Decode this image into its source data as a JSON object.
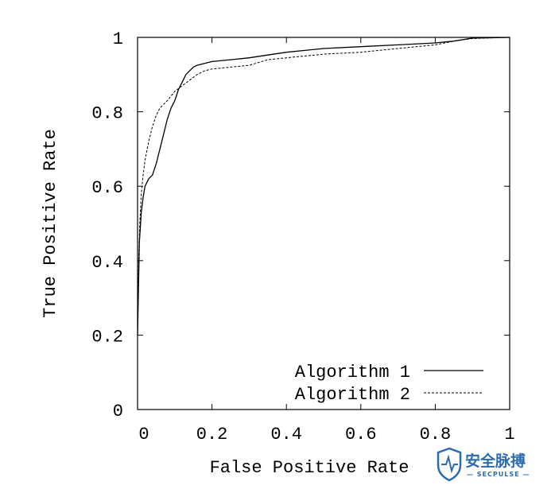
{
  "chart_data": {
    "type": "line",
    "title": "",
    "xlabel": "False Positive Rate",
    "ylabel": "True Positive Rate",
    "xlim": [
      0,
      1
    ],
    "ylim": [
      0,
      1
    ],
    "x_ticks": [
      {
        "value": 0,
        "label": "0"
      },
      {
        "value": 0.2,
        "label": "0.2"
      },
      {
        "value": 0.4,
        "label": "0.4"
      },
      {
        "value": 0.6,
        "label": "0.6"
      },
      {
        "value": 0.8,
        "label": "0.8"
      },
      {
        "value": 1,
        "label": "1"
      }
    ],
    "y_ticks": [
      {
        "value": 0,
        "label": "0"
      },
      {
        "value": 0.2,
        "label": "0.2"
      },
      {
        "value": 0.4,
        "label": "0.4"
      },
      {
        "value": 0.6,
        "label": "0.6"
      },
      {
        "value": 0.8,
        "label": "0.8"
      },
      {
        "value": 1,
        "label": "1"
      }
    ],
    "grid": false,
    "legend_position": "bottom-right",
    "series": [
      {
        "name": "Algorithm 1",
        "style": "solid",
        "color": "#000000",
        "x": [
          0,
          0.005,
          0.01,
          0.015,
          0.02,
          0.03,
          0.04,
          0.05,
          0.06,
          0.07,
          0.08,
          0.09,
          0.1,
          0.11,
          0.12,
          0.13,
          0.14,
          0.15,
          0.16,
          0.18,
          0.2,
          0.25,
          0.3,
          0.4,
          0.5,
          0.6,
          0.7,
          0.8,
          0.85,
          0.9,
          1.0
        ],
        "y": [
          0.2,
          0.45,
          0.53,
          0.57,
          0.6,
          0.62,
          0.63,
          0.66,
          0.7,
          0.74,
          0.78,
          0.81,
          0.83,
          0.86,
          0.88,
          0.9,
          0.91,
          0.92,
          0.925,
          0.93,
          0.935,
          0.94,
          0.945,
          0.96,
          0.97,
          0.975,
          0.98,
          0.985,
          0.99,
          0.998,
          1.0
        ]
      },
      {
        "name": "Algorithm 2",
        "style": "dashed",
        "color": "#000000",
        "x": [
          0,
          0.003,
          0.006,
          0.01,
          0.015,
          0.02,
          0.03,
          0.04,
          0.05,
          0.06,
          0.08,
          0.1,
          0.12,
          0.14,
          0.16,
          0.18,
          0.2,
          0.25,
          0.3,
          0.35,
          0.4,
          0.5,
          0.6,
          0.7,
          0.8,
          0.85,
          0.9,
          1.0
        ],
        "y": [
          0.2,
          0.4,
          0.5,
          0.58,
          0.63,
          0.67,
          0.72,
          0.76,
          0.79,
          0.81,
          0.83,
          0.855,
          0.87,
          0.885,
          0.9,
          0.91,
          0.915,
          0.92,
          0.925,
          0.94,
          0.945,
          0.955,
          0.96,
          0.97,
          0.98,
          0.99,
          0.997,
          1.0
        ]
      }
    ]
  },
  "watermark": {
    "text_cn": "安全脉搏",
    "text_en": "— SECPULSE —",
    "color": "#2b6cb0"
  }
}
